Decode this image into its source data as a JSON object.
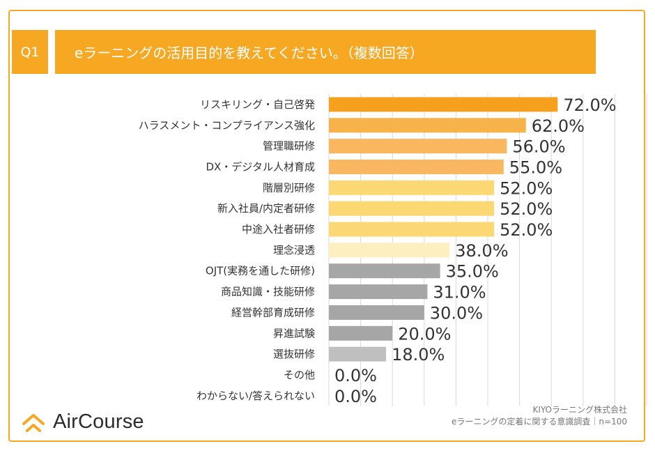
{
  "header": {
    "badge": "Q1",
    "title": "eラーニングの活用目的を教えてください。（複数回答）"
  },
  "chart_data": {
    "type": "bar",
    "orientation": "horizontal",
    "categories": [
      "リスキリング・自己啓発",
      "ハラスメント・コンプライアンス強化",
      "管理職研修",
      "DX・デジタル人材育成",
      "階層別研修",
      "新入社員/内定者研修",
      "中途入社者研修",
      "理念浸透",
      "OJT(実務を通した研修)",
      "商品知識・技能研修",
      "経営幹部育成研修",
      "昇進試験",
      "選抜研修",
      "その他",
      "わからない/答えられない"
    ],
    "values": [
      72.0,
      62.0,
      56.0,
      55.0,
      52.0,
      52.0,
      52.0,
      38.0,
      35.0,
      31.0,
      30.0,
      20.0,
      18.0,
      0.0,
      0.0
    ],
    "value_labels": [
      "72.0%",
      "62.0%",
      "56.0%",
      "55.0%",
      "52.0%",
      "52.0%",
      "52.0%",
      "38.0%",
      "35.0%",
      "31.0%",
      "30.0%",
      "20.0%",
      "18.0%",
      "0.0%",
      "0.0%"
    ],
    "bar_colors": [
      "#f7a01e",
      "#f8b24a",
      "#f9b860",
      "#f9b860",
      "#fcd874",
      "#fcd874",
      "#fcd874",
      "#fdefc0",
      "#a6a6a6",
      "#a6a6a6",
      "#a6a6a6",
      "#a6a6a6",
      "#bfbfbf",
      "#bfbfbf",
      "#bfbfbf"
    ],
    "xlim": [
      0,
      100
    ],
    "grid": true,
    "title": "eラーニングの活用目的を教えてください。（複数回答）"
  },
  "brand": {
    "logo_text": "AirCourse",
    "accent": "#f7a823"
  },
  "footer": {
    "company": "KIYOラーニング株式会社",
    "survey": "eラーニングの定着に関する意識調査｜n=100"
  }
}
